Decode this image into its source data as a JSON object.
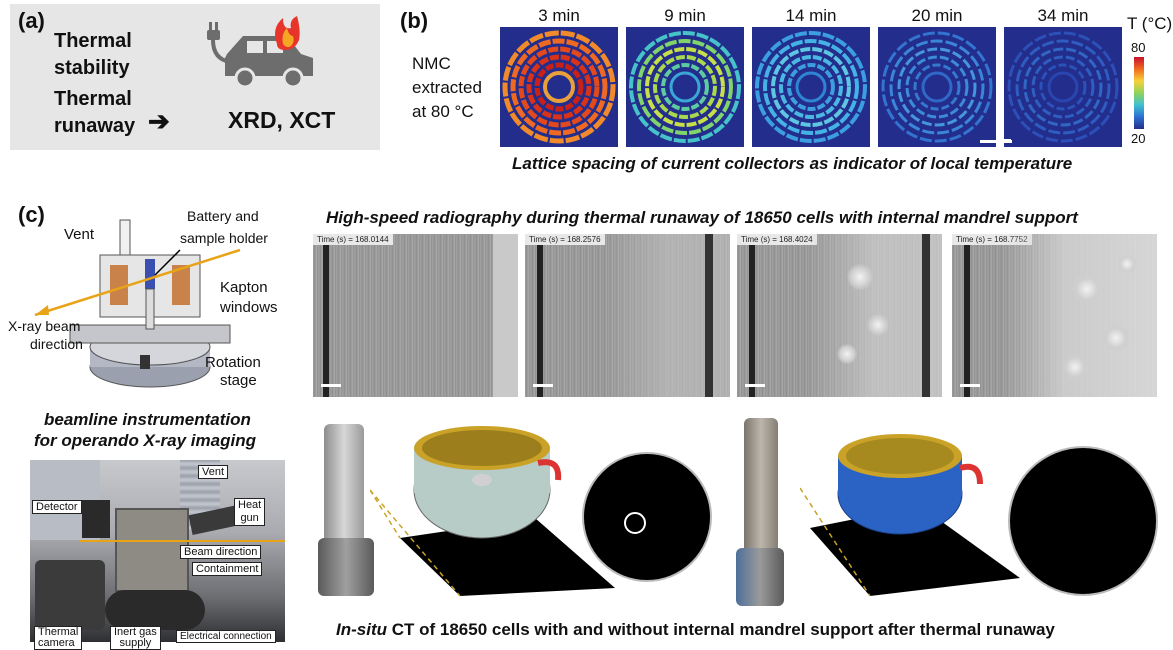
{
  "panel_a": {
    "letter": "(a)",
    "line1": "Thermal",
    "line2": "stability",
    "line3": "Thermal",
    "line4": "runaway",
    "arrow": "➔",
    "result": "XRD, XCT",
    "icon": "burning-car-charging-icon"
  },
  "panel_b": {
    "letter": "(b)",
    "sample_line1": "NMC",
    "sample_line2": "extracted",
    "sample_line3": "at 80 °C",
    "times": [
      "3 min",
      "9 min",
      "14 min",
      "20 min",
      "34 min"
    ],
    "colorbar_title": "T (°C)",
    "colorbar_max": "80",
    "colorbar_min": "20",
    "caption": "Lattice spacing of current collectors as indicator of local temperature"
  },
  "panel_c": {
    "letter": "(c)",
    "schematic_labels": {
      "vent": "Vent",
      "battery_holder_1": "Battery and",
      "battery_holder_2": "sample holder",
      "kapton_1": "Kapton",
      "kapton_2": "windows",
      "xray_1": "X-ray beam",
      "xray_2": "direction",
      "rotation_1": "Rotation",
      "rotation_2": "stage"
    },
    "instrument_caption_1": "beamline instrumentation",
    "instrument_caption_2": "for operando X-ray imaging",
    "photo_labels": {
      "vent": "Vent",
      "heat_gun_1": "Heat",
      "heat_gun_2": "gun",
      "detector": "Detector",
      "beam_direction": "Beam direction",
      "containment": "Containment",
      "thermal_camera_1": "Thermal",
      "thermal_camera_2": "camera",
      "inert_gas_1": "Inert gas",
      "inert_gas_2": "supply",
      "electrical": "Electrical connection"
    },
    "radiography_caption": "High-speed radiography during thermal runaway of 18650 cells with internal mandrel support",
    "radiography_times": [
      "Time (s) = 168.0144",
      "Time (s) = 168.2576",
      "Time (s) = 168.4024",
      "Time (s) = 168.7752"
    ],
    "ct_caption_italic": "In-situ",
    "ct_caption_rest": " CT of 18650 cells with and without internal mandrel support after thermal runaway"
  },
  "colors": {
    "panel_a_bg": "#e6e6e6",
    "heatmap_bg": "#232d8c",
    "beam_line": "#e8a317",
    "ct_gold": "#c9a227",
    "ct_blue": "#2a63c4"
  }
}
